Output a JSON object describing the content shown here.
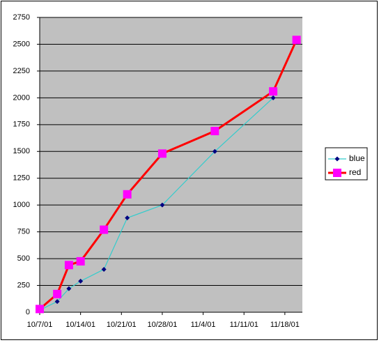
{
  "chart_data": {
    "type": "line",
    "series": [
      {
        "name": "blue",
        "color": "#000080",
        "line_color": "#33cccc",
        "marker": "diamond",
        "x": [
          "10/7/01",
          "10/10/01",
          "10/12/01",
          "10/14/01",
          "10/18/01",
          "10/22/01",
          "10/28/01",
          "11/6/01",
          "11/16/01"
        ],
        "values": [
          20,
          100,
          220,
          290,
          400,
          880,
          1000,
          1500,
          2000
        ]
      },
      {
        "name": "red",
        "color": "#ff00ff",
        "line_color": "#ff0000",
        "marker": "square",
        "x": [
          "10/7/01",
          "10/10/01",
          "10/12/01",
          "10/14/01",
          "10/18/01",
          "10/22/01",
          "10/28/01",
          "11/6/01",
          "11/16/01",
          "11/20/01"
        ],
        "values": [
          30,
          170,
          440,
          475,
          770,
          1100,
          1480,
          1690,
          2060,
          2540
        ]
      }
    ],
    "xlim": [
      "10/7/01",
      "11/21/01"
    ],
    "xticks": [
      "10/7/01",
      "10/14/01",
      "10/21/01",
      "10/28/01",
      "11/4/01",
      "11/11/01",
      "11/18/01"
    ],
    "ylim": [
      0,
      2750
    ],
    "yticks": [
      0,
      250,
      500,
      750,
      1000,
      1250,
      1500,
      1750,
      2000,
      2250,
      2500,
      2750
    ],
    "grid": true,
    "legend": "right",
    "plot_background": "#c0c0c0"
  }
}
